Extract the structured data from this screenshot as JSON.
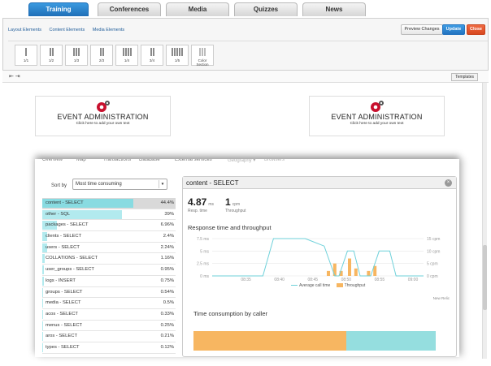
{
  "tabs": [
    "Training",
    "Conferences",
    "Media",
    "Quizzes",
    "News"
  ],
  "active_tab": "Training",
  "builder": {
    "subtabs": [
      "Layout Elements",
      "Content Elements",
      "Media Elements"
    ],
    "preview_label": "Preview Changes",
    "update_label": "Update",
    "close_label": "Close",
    "layouts": [
      {
        "label": "1/1",
        "cols": 1
      },
      {
        "label": "1/2",
        "cols": 2
      },
      {
        "label": "1/3",
        "cols": 3
      },
      {
        "label": "2/3",
        "cols": 2
      },
      {
        "label": "1/4",
        "cols": 4
      },
      {
        "label": "3/4",
        "cols": 2
      },
      {
        "label": "1/5",
        "cols": 5
      },
      {
        "label": "Color Section",
        "cols": 0
      }
    ],
    "templates_label": "Templates"
  },
  "event_header": {
    "title": "EVENT ADMINISTRATION",
    "subtitle": "Click here to add your own text"
  },
  "apm": {
    "nav": [
      "Overview",
      "Map",
      "Transactions",
      "Database",
      "External services",
      "Geography ▾",
      "Browsers"
    ],
    "sort_label": "Sort by",
    "sort_value": "Most time consuming",
    "rows": [
      {
        "name": "content - SELECT",
        "pct": "44.4%",
        "value": 44.4
      },
      {
        "name": "other - SQL",
        "pct": "39%",
        "value": 39
      },
      {
        "name": "packages - SELECT",
        "pct": "6.96%",
        "value": 6.96
      },
      {
        "name": "clients - SELECT",
        "pct": "2.4%",
        "value": 2.4
      },
      {
        "name": "users - SELECT",
        "pct": "2.24%",
        "value": 2.24
      },
      {
        "name": "COLLATIONS - SELECT",
        "pct": "1.16%",
        "value": 1.16
      },
      {
        "name": "user_groups - SELECT",
        "pct": "0.95%",
        "value": 0.95
      },
      {
        "name": "logs - INSERT",
        "pct": "0.75%",
        "value": 0.75
      },
      {
        "name": "groups - SELECT",
        "pct": "0.54%",
        "value": 0.54
      },
      {
        "name": "media - SELECT",
        "pct": "0.5%",
        "value": 0.5
      },
      {
        "name": "acos - SELECT",
        "pct": "0.33%",
        "value": 0.33
      },
      {
        "name": "menus - SELECT",
        "pct": "0.25%",
        "value": 0.25
      },
      {
        "name": "aros - SELECT",
        "pct": "0.21%",
        "value": 0.21
      },
      {
        "name": "types - SELECT",
        "pct": "0.12%",
        "value": 0.12
      }
    ],
    "detail": {
      "title": "content - SELECT",
      "resp_value": "4.87",
      "resp_unit": "ms",
      "resp_label": "Resp. time",
      "thr_value": "1",
      "thr_unit": "cpm",
      "thr_label": "Throughput",
      "chart_title": "Response time and throughput",
      "caller_title": "Time consumption by caller",
      "sub_link": "New Relic",
      "legend": [
        "Average call time",
        "Throughput"
      ]
    }
  },
  "chart_data": {
    "type": "line",
    "title": "Response time and throughput",
    "x": [
      "08:35",
      "08:40",
      "08:45",
      "08:50",
      "08:55",
      "09:00"
    ],
    "y_left_ticks": [
      "7.5 ms",
      "5 ms",
      "2.5 ms",
      "0 ms"
    ],
    "y_right_ticks": [
      "15 cpm",
      "10 cpm",
      "5 cpm",
      "0 cpm"
    ],
    "ylim_left": [
      0,
      7.5
    ],
    "ylim_right": [
      0,
      15
    ],
    "series": [
      {
        "name": "Average call time",
        "type": "line",
        "color": "#6fd1da",
        "points": [
          [
            0.0,
            0
          ],
          [
            0.2,
            0
          ],
          [
            0.24,
            0
          ],
          [
            0.29,
            7.5
          ],
          [
            0.44,
            7.5
          ],
          [
            0.53,
            6.0
          ],
          [
            0.58,
            0
          ],
          [
            0.6,
            0
          ],
          [
            0.64,
            5.0
          ],
          [
            0.67,
            5.0
          ],
          [
            0.7,
            0
          ],
          [
            0.75,
            0
          ],
          [
            0.79,
            5.0
          ],
          [
            0.84,
            5.0
          ],
          [
            0.87,
            0
          ],
          [
            1.0,
            0
          ]
        ]
      },
      {
        "name": "Throughput",
        "type": "bar",
        "color": "#f7b661",
        "points": [
          [
            0.55,
            2
          ],
          [
            0.58,
            5
          ],
          [
            0.61,
            2
          ],
          [
            0.65,
            7
          ],
          [
            0.68,
            3
          ],
          [
            0.74,
            2
          ],
          [
            0.77,
            4
          ]
        ]
      }
    ],
    "legend_position": "bottom",
    "caller_split": [
      {
        "name": "Throughput",
        "color": "#f7b661",
        "value": 0.63
      },
      {
        "name": "Average call time",
        "color": "#95dedf",
        "value": 0.37
      }
    ]
  },
  "colors": {
    "accent": "#1f6fb7",
    "close": "#d8481f",
    "bar": "#b2eaee",
    "orange": "#f7b661",
    "teal": "#6fd1da"
  }
}
